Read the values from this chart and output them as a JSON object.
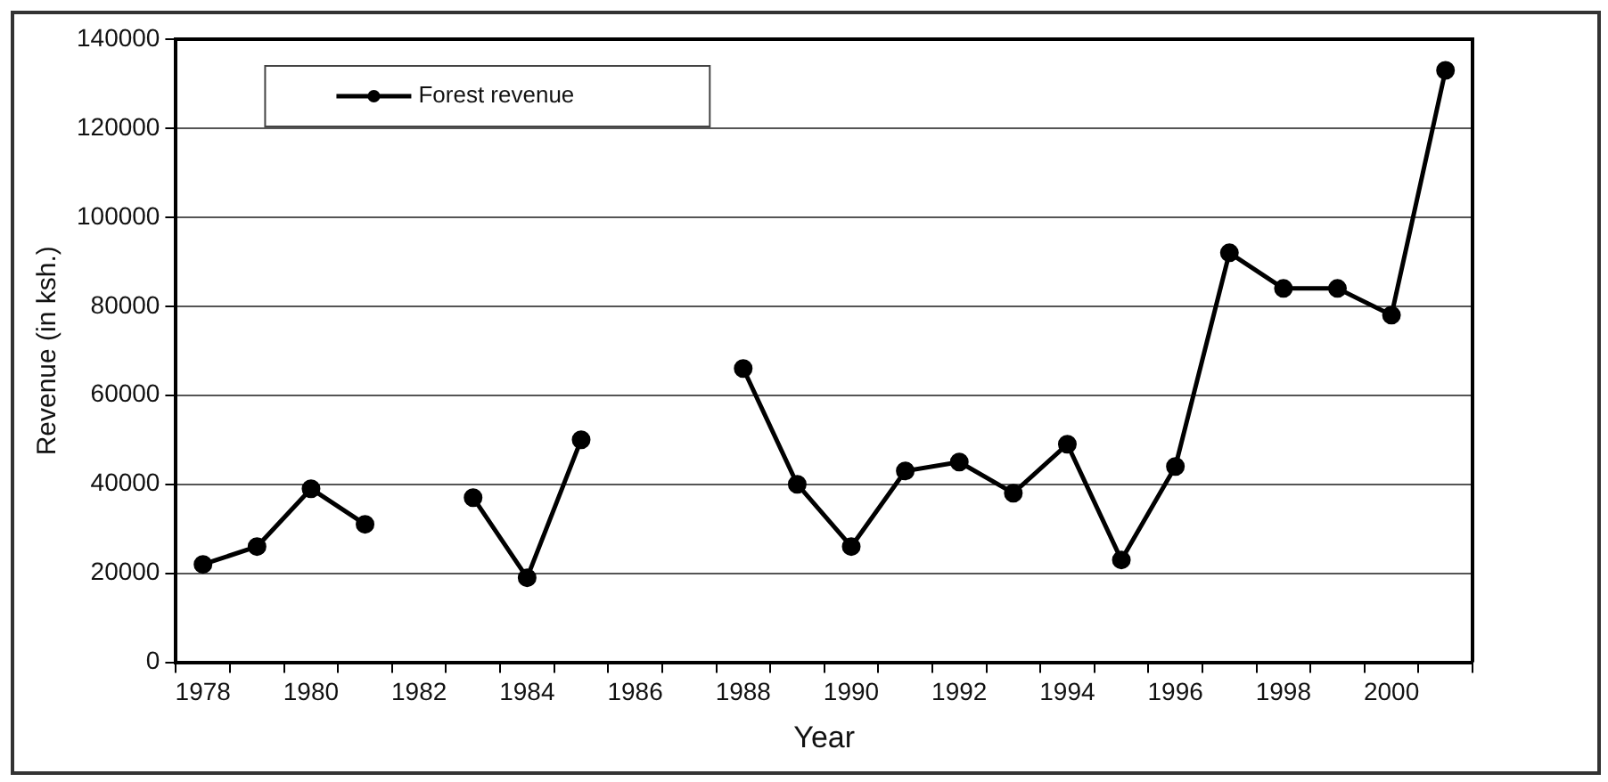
{
  "chart_data": {
    "type": "line",
    "xlabel": "Year",
    "ylabel": "Revenue (in ksh.)",
    "categories": [
      "1978",
      null,
      "1980",
      null,
      "1982",
      null,
      "1984",
      null,
      "1986",
      null,
      "1988",
      null,
      "1990",
      null,
      "1992",
      null,
      "1994",
      null,
      "1996",
      null,
      "1998",
      null,
      "2000",
      null
    ],
    "series": [
      {
        "name": "Forest revenue",
        "color": "#000000",
        "values": [
          22000,
          26000,
          39000,
          31000,
          null,
          37000,
          19000,
          50000,
          null,
          null,
          66000,
          40000,
          26000,
          43000,
          45000,
          38000,
          49000,
          23000,
          44000,
          92000,
          84000,
          84000,
          78000,
          133000
        ]
      }
    ],
    "ylim": [
      0,
      140000
    ],
    "yticks": [
      0,
      20000,
      40000,
      60000,
      80000,
      100000,
      120000,
      140000
    ],
    "grid": "y",
    "legend": "top left",
    "marker": "circle",
    "line_style": "solid"
  }
}
